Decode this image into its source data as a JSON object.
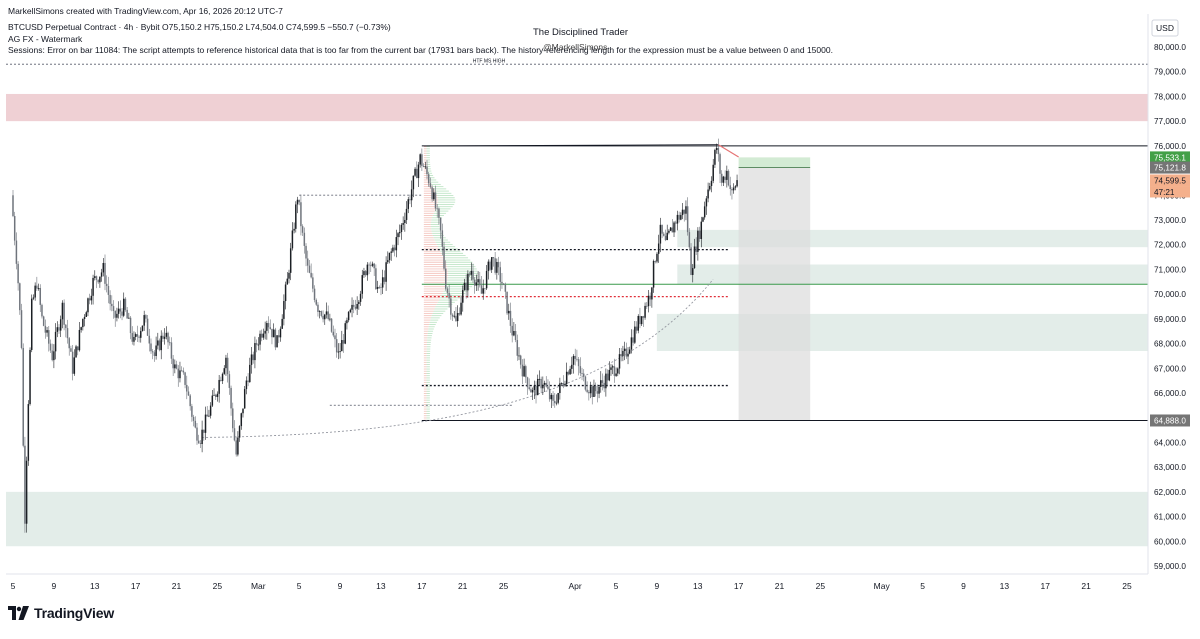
{
  "header": {
    "created_by": "MarkellSimons created with TradingView.com, Apr 16, 2026 20:12 UTC-7",
    "symbol_line": "BTCUSD Perpetual Contract · 4h · Bybit  O75,150.2  H75,150.2  L74,504.0  C74,599.5  −550.7 (−0.73%)",
    "indicator_1": "AG FX - Watermark",
    "indicator_2": "Sessions: Error on bar 11084: The script attempts to reference historical data that is too far from the current bar (17931 bars back). The history-referencing length for the expression must be a value between 0 and 15000."
  },
  "watermark": {
    "title": "The Disciplined Trader",
    "handle": "@MarkellSimons"
  },
  "logo": {
    "text": "TradingView",
    "icon": "tradingview-logo-icon"
  },
  "chart_data": {
    "type": "candlestick",
    "symbol": "BTCUSD Perpetual Contract",
    "interval": "4h",
    "exchange": "Bybit",
    "currency": "USD",
    "ohlc_last": {
      "open": 75150.2,
      "high": 75150.2,
      "low": 74504.0,
      "close": 74599.5,
      "change": -550.7,
      "change_pct": -0.73
    },
    "ylim": [
      58500,
      81000
    ],
    "y_ticks": [
      "59,000.0",
      "60,000.0",
      "61,000.0",
      "62,000.0",
      "63,000.0",
      "64,000.0",
      "65,000.0",
      "66,000.0",
      "67,000.0",
      "68,000.0",
      "69,000.0",
      "70,000.0",
      "71,000.0",
      "72,000.0",
      "73,000.0",
      "74,000.0",
      "75,000.0",
      "76,000.0",
      "77,000.0",
      "78,000.0",
      "79,000.0",
      "80,000.0"
    ],
    "x_ticks": [
      {
        "label": "5",
        "day": 0
      },
      {
        "label": "9",
        "day": 4
      },
      {
        "label": "13",
        "day": 8
      },
      {
        "label": "17",
        "day": 12
      },
      {
        "label": "21",
        "day": 16
      },
      {
        "label": "25",
        "day": 20
      },
      {
        "label": "Mar",
        "day": 24
      },
      {
        "label": "5",
        "day": 28
      },
      {
        "label": "9",
        "day": 32
      },
      {
        "label": "13",
        "day": 36
      },
      {
        "label": "17",
        "day": 40
      },
      {
        "label": "21",
        "day": 44
      },
      {
        "label": "25",
        "day": 48
      },
      {
        "label": "Apr",
        "day": 55
      },
      {
        "label": "5",
        "day": 59
      },
      {
        "label": "9",
        "day": 63
      },
      {
        "label": "13",
        "day": 67
      },
      {
        "label": "17",
        "day": 71
      },
      {
        "label": "21",
        "day": 75
      },
      {
        "label": "25",
        "day": 79
      },
      {
        "label": "May",
        "day": 85
      },
      {
        "label": "5",
        "day": 89
      },
      {
        "label": "9",
        "day": 93
      },
      {
        "label": "13",
        "day": 97
      },
      {
        "label": "17",
        "day": 101
      },
      {
        "label": "21",
        "day": 105
      },
      {
        "label": "25",
        "day": 109
      }
    ],
    "price_path": [
      [
        0,
        74000
      ],
      [
        0.6,
        71000
      ],
      [
        1,
        68000
      ],
      [
        1.3,
        60500
      ],
      [
        1.6,
        65000
      ],
      [
        2,
        69500
      ],
      [
        2.5,
        70500
      ],
      [
        3,
        69000
      ],
      [
        4,
        67500
      ],
      [
        5,
        69500
      ],
      [
        6,
        67000
      ],
      [
        7,
        69000
      ],
      [
        8,
        70500
      ],
      [
        9,
        71000
      ],
      [
        10,
        69000
      ],
      [
        11,
        69500
      ],
      [
        12,
        68000
      ],
      [
        13,
        69000
      ],
      [
        14,
        67500
      ],
      [
        15,
        68500
      ],
      [
        16,
        67000
      ],
      [
        17,
        66500
      ],
      [
        18,
        64500
      ],
      [
        18.5,
        64200
      ],
      [
        19,
        64800
      ],
      [
        20,
        66000
      ],
      [
        21,
        67500
      ],
      [
        21.6,
        65000
      ],
      [
        22,
        63500
      ],
      [
        23,
        66500
      ],
      [
        24,
        68000
      ],
      [
        25,
        69000
      ],
      [
        26,
        68000
      ],
      [
        27,
        70500
      ],
      [
        28,
        74000
      ],
      [
        28.6,
        72000
      ],
      [
        29,
        71000
      ],
      [
        30,
        69500
      ],
      [
        31,
        69000
      ],
      [
        32,
        67500
      ],
      [
        33,
        69000
      ],
      [
        34,
        70000
      ],
      [
        35,
        71500
      ],
      [
        36,
        70000
      ],
      [
        37,
        71500
      ],
      [
        38,
        72500
      ],
      [
        39,
        74000
      ],
      [
        40,
        75500
      ],
      [
        41,
        74500
      ],
      [
        42,
        72500
      ],
      [
        42.5,
        70500
      ],
      [
        43,
        69500
      ],
      [
        43.5,
        68800
      ],
      [
        44,
        69800
      ],
      [
        45,
        71000
      ],
      [
        46,
        70000
      ],
      [
        47,
        71500
      ],
      [
        48,
        70500
      ],
      [
        49,
        68500
      ],
      [
        50,
        67000
      ],
      [
        51,
        66000
      ],
      [
        52,
        66500
      ],
      [
        53,
        65500
      ],
      [
        54,
        66500
      ],
      [
        55,
        67500
      ],
      [
        56,
        66500
      ],
      [
        57,
        66000
      ],
      [
        58,
        66500
      ],
      [
        59,
        67000
      ],
      [
        60,
        67500
      ],
      [
        61,
        68500
      ],
      [
        62,
        69500
      ],
      [
        62.5,
        70000
      ],
      [
        63,
        71500
      ],
      [
        63.5,
        72500
      ],
      [
        64,
        72000
      ],
      [
        65,
        73000
      ],
      [
        65.5,
        73200
      ],
      [
        66,
        73500
      ],
      [
        66.5,
        71000
      ],
      [
        67,
        72000
      ],
      [
        67.5,
        72800
      ],
      [
        68,
        74000
      ],
      [
        68.5,
        74800
      ],
      [
        69,
        76000
      ],
      [
        69.5,
        74500
      ],
      [
        70,
        75000
      ],
      [
        70.5,
        74000
      ],
      [
        71,
        74600
      ]
    ],
    "bull_color": "#1b1f24",
    "bear_color": "#6f747c",
    "zones": [
      {
        "kind": "supply",
        "from_day": -2,
        "to_day": 135,
        "low": 77000,
        "high": 78100,
        "color": "#efd0d4"
      },
      {
        "kind": "demand",
        "from_day": -2,
        "to_day": 135,
        "low": 59800,
        "high": 62000,
        "color": "#e3ede9"
      },
      {
        "kind": "demand",
        "from_day": 65,
        "to_day": 135,
        "low": 71900,
        "high": 72600,
        "color": "#e3ede9"
      },
      {
        "kind": "demand",
        "from_day": 65,
        "to_day": 135,
        "low": 70400,
        "high": 71200,
        "color": "#e3ede9"
      },
      {
        "kind": "demand",
        "from_day": 63,
        "to_day": 135,
        "low": 67700,
        "high": 69200,
        "color": "#e3ede9"
      },
      {
        "kind": "demand",
        "from_day": -2,
        "to_day": -1.3,
        "low": 59800,
        "high": 65700,
        "color": "#e3ede9"
      }
    ],
    "levels": [
      {
        "name": "range-high",
        "price": 76000,
        "from_day": 40,
        "to_day": 113,
        "color": "#131722",
        "style": "solid"
      },
      {
        "name": "range-low",
        "price": 64888,
        "from_day": 40,
        "to_day": 113,
        "color": "#131722",
        "style": "solid"
      },
      {
        "name": "htf-ms-high",
        "price": 79300,
        "from_day": -1,
        "to_day": 113,
        "color": "#9598a1",
        "style": "dotted"
      },
      {
        "name": "level-71800",
        "price": 71800,
        "from_day": 40,
        "to_day": 70,
        "color": "#131722",
        "style": "dotted"
      },
      {
        "name": "level-70500",
        "price": 70400,
        "from_day": 40,
        "to_day": 113,
        "color": "#3a9a4c",
        "style": "solid"
      },
      {
        "name": "level-69900",
        "price": 69900,
        "from_day": 40,
        "to_day": 70,
        "color": "#e0303a",
        "style": "dotted"
      },
      {
        "name": "level-66300",
        "price": 66300,
        "from_day": 40,
        "to_day": 70,
        "color": "#131722",
        "style": "dotted"
      },
      {
        "name": "gap-top-left",
        "price": 74000,
        "from_day": 28,
        "to_day": 40,
        "color": "#9598a1",
        "style": "dotted"
      },
      {
        "name": "gap-bottom-left",
        "price": 65500,
        "from_day": 31,
        "to_day": 49,
        "color": "#9598a1",
        "style": "dotted"
      }
    ],
    "trade_box": {
      "from_day": 71,
      "to_day": 78,
      "entry": 75121.8,
      "target": 75533.1,
      "stop": 64888,
      "target_color": "#c8e6c9",
      "stop_color": "#dcdcdc"
    },
    "label_htf": "HTF MS HIGH",
    "price_labels": [
      {
        "price": 75533.1,
        "text": "75,533.1",
        "bg": "#43a047",
        "fg": "#ffffff"
      },
      {
        "price": 75121.8,
        "text": "75,121.8",
        "bg": "#757575",
        "fg": "#ffffff"
      },
      {
        "price": 74599.5,
        "text": "74,599.5",
        "bg": "#f4b08c",
        "fg": "#131722"
      },
      {
        "price": 64888.0,
        "text": "64,888.0",
        "bg": "#757575",
        "fg": "#ffffff"
      }
    ],
    "countdown": "47:21"
  }
}
